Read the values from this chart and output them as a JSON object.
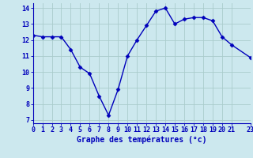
{
  "hours": [
    0,
    1,
    2,
    3,
    4,
    5,
    6,
    7,
    8,
    9,
    10,
    11,
    12,
    13,
    14,
    15,
    16,
    17,
    18,
    19,
    20,
    21,
    23
  ],
  "temps": [
    12.3,
    12.2,
    12.2,
    12.2,
    11.4,
    10.3,
    9.9,
    8.5,
    7.3,
    8.9,
    11.0,
    12.0,
    12.9,
    13.8,
    14.0,
    13.0,
    13.3,
    13.4,
    13.4,
    13.2,
    12.2,
    11.7,
    10.9
  ],
  "xlim": [
    0,
    23
  ],
  "ylim": [
    6.8,
    14.3
  ],
  "yticks": [
    7,
    8,
    9,
    10,
    11,
    12,
    13,
    14
  ],
  "xticks": [
    0,
    1,
    2,
    3,
    4,
    5,
    6,
    7,
    8,
    9,
    10,
    11,
    12,
    13,
    14,
    15,
    16,
    17,
    18,
    19,
    20,
    21,
    23
  ],
  "xlabel": "Graphe des températures (°c)",
  "line_color": "#0000bb",
  "marker": "D",
  "bg_color": "#cce8ee",
  "grid_color": "#aacccc",
  "marker_size": 2.5,
  "line_width": 1.0,
  "tick_fontsize": 6.0,
  "xlabel_fontsize": 7.0
}
